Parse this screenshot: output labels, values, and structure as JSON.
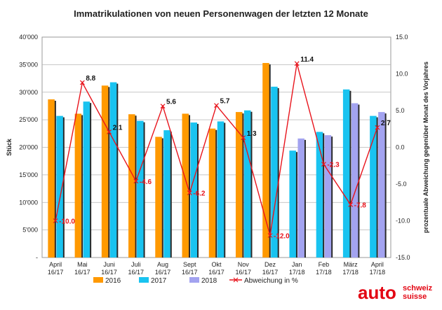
{
  "chart_data": {
    "type": "bar",
    "title": "Immatrikulationen von neuen Personenwagen der letzten 12 Monate",
    "ylabel": "Stück",
    "y2label": "prozentuale Abweichung gegenüber Monat des Vorjahres",
    "ylim": [
      0,
      40000
    ],
    "y2lim": [
      -15,
      15
    ],
    "yticks": [
      "-",
      "5'000",
      "10'000",
      "15'000",
      "20'000",
      "25'000",
      "30'000",
      "35'000",
      "40'000"
    ],
    "y2ticks": [
      "-15.0",
      "-10.0",
      "-5.0",
      "0.0",
      "5.0",
      "10.0",
      "15.0"
    ],
    "categories": [
      {
        "month": "April",
        "period": "16/17"
      },
      {
        "month": "Mai",
        "period": "16/17"
      },
      {
        "month": "Juni",
        "period": "16/17"
      },
      {
        "month": "Juli",
        "period": "16/17"
      },
      {
        "month": "Aug",
        "period": "16/17"
      },
      {
        "month": "Sept",
        "period": "16/17"
      },
      {
        "month": "Okt",
        "period": "16/17"
      },
      {
        "month": "Nov",
        "period": "16/17"
      },
      {
        "month": "Dez",
        "period": "16/17"
      },
      {
        "month": "Jan",
        "period": "17/18"
      },
      {
        "month": "Feb",
        "period": "17/18"
      },
      {
        "month": "März",
        "period": "17/18"
      },
      {
        "month": "April",
        "period": "17/18"
      }
    ],
    "series": [
      {
        "name": "2016",
        "color": "#ff9900",
        "values": [
          28700,
          26100,
          31200,
          26000,
          21900,
          26100,
          23400,
          26400,
          35300,
          null,
          null,
          null,
          null
        ]
      },
      {
        "name": "2017",
        "color": "#19c3f0",
        "values": [
          25700,
          28300,
          31800,
          24800,
          23100,
          24500,
          24700,
          26700,
          31000,
          19400,
          22800,
          30500,
          25700
        ]
      },
      {
        "name": "2018",
        "color": "#a3a3f0",
        "values": [
          null,
          null,
          null,
          null,
          null,
          null,
          null,
          null,
          null,
          21600,
          22200,
          28000,
          26400
        ]
      }
    ],
    "line": {
      "name": "Abweichung in %",
      "color": "#e8141c",
      "values": [
        -10.0,
        8.8,
        2.1,
        -4.6,
        5.6,
        -6.2,
        5.7,
        1.3,
        -12.0,
        11.4,
        -2.3,
        -7.8,
        2.7
      ],
      "labels": [
        "-10.0",
        "8.8",
        "2.1",
        "-4.6",
        "5.6",
        "-6.2",
        "5.7",
        "1.3",
        "-12.0",
        "11.4",
        "-2.3",
        "-7.8",
        "2.7"
      ]
    }
  },
  "logo": {
    "main": "auto",
    "line1": "schweiz",
    "line2": "suisse"
  }
}
